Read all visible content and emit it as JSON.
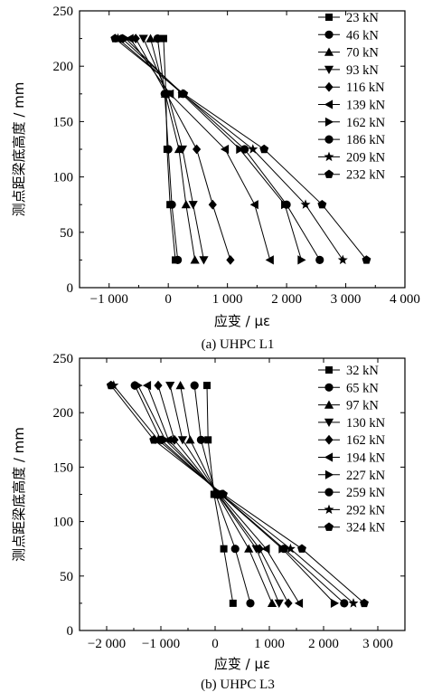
{
  "charts": [
    {
      "chart_data": {
        "type": "line",
        "caption": "(a) UHPC L1",
        "xlabel": "应变 / με",
        "ylabel": "测点距梁底高度 / mm",
        "xlim": [
          -1500,
          4000
        ],
        "ylim": [
          0,
          250
        ],
        "xticks": [
          -1000,
          0,
          1000,
          2000,
          3000,
          4000
        ],
        "xtick_labels": [
          "−1 000",
          "0",
          "1 000",
          "2 000",
          "3 000",
          "4 000"
        ],
        "yticks": [
          0,
          50,
          100,
          150,
          200,
          250
        ],
        "ytick_labels": [
          "0",
          "50",
          "100",
          "150",
          "200",
          "250"
        ],
        "heights": [
          25,
          75,
          125,
          175,
          225
        ],
        "legend_position": "top-right",
        "grid": false,
        "series": [
          {
            "name": "23 kN",
            "marker": "square",
            "strain": [
              120,
              30,
              -20,
              -40,
              -80
            ]
          },
          {
            "name": "46 kN",
            "marker": "circle",
            "strain": [
              160,
              60,
              0,
              -60,
              -180
            ]
          },
          {
            "name": "70 kN",
            "marker": "triangle-up",
            "strain": [
              450,
              300,
              180,
              -50,
              -300
            ]
          },
          {
            "name": "93 kN",
            "marker": "triangle-down",
            "strain": [
              600,
              420,
              240,
              -10,
              -420
            ]
          },
          {
            "name": "116 kN",
            "marker": "diamond",
            "strain": [
              1050,
              750,
              480,
              -30,
              -550
            ]
          },
          {
            "name": "139 kN",
            "marker": "triangle-left",
            "strain": [
              1720,
              1460,
              960,
              30,
              -650
            ]
          },
          {
            "name": "162 kN",
            "marker": "triangle-right",
            "strain": [
              2250,
              1970,
              1210,
              230,
              -720
            ]
          },
          {
            "name": "186 kN",
            "marker": "circle",
            "strain": [
              2560,
              2000,
              1290,
              250,
              -780
            ]
          },
          {
            "name": "209 kN",
            "marker": "star",
            "strain": [
              2950,
              2320,
              1430,
              240,
              -850
            ]
          },
          {
            "name": "232 kN",
            "marker": "pentagon",
            "strain": [
              3350,
              2600,
              1620,
              260,
              -900
            ]
          }
        ]
      }
    },
    {
      "chart_data": {
        "type": "line",
        "caption": "(b) UHPC L3",
        "xlabel": "应变 / με",
        "ylabel": "测点距梁底高度 / mm",
        "xlim": [
          -2500,
          3500
        ],
        "ylim": [
          0,
          250
        ],
        "xticks": [
          -2000,
          -1000,
          0,
          1000,
          2000,
          3000
        ],
        "xtick_labels": [
          "−2 000",
          "−1 000",
          "0",
          "1 000",
          "2 000",
          "3 000"
        ],
        "yticks": [
          0,
          50,
          100,
          150,
          200,
          250
        ],
        "ytick_labels": [
          "0",
          "50",
          "100",
          "150",
          "200",
          "250"
        ],
        "heights": [
          25,
          75,
          125,
          175,
          225
        ],
        "legend_position": "top-right",
        "grid": false,
        "series": [
          {
            "name": "32 kN",
            "marker": "square",
            "strain": [
              330,
              160,
              -20,
              -130,
              -150
            ]
          },
          {
            "name": "65 kN",
            "marker": "circle",
            "strain": [
              650,
              370,
              10,
              -260,
              -380
            ]
          },
          {
            "name": "97 kN",
            "marker": "triangle-up",
            "strain": [
              1050,
              620,
              40,
              -460,
              -640
            ]
          },
          {
            "name": "130 kN",
            "marker": "triangle-down",
            "strain": [
              1180,
              760,
              50,
              -600,
              -830
            ]
          },
          {
            "name": "162 kN",
            "marker": "diamond",
            "strain": [
              1350,
              820,
              60,
              -750,
              -1050
            ]
          },
          {
            "name": "194 kN",
            "marker": "triangle-left",
            "strain": [
              1550,
              940,
              80,
              -860,
              -1250
            ]
          },
          {
            "name": "227 kN",
            "marker": "triangle-right",
            "strain": [
              2200,
              1240,
              100,
              -920,
              -1420
            ]
          },
          {
            "name": "259 kN",
            "marker": "circle",
            "strain": [
              2380,
              1270,
              110,
              -1000,
              -1480
            ]
          },
          {
            "name": "292 kN",
            "marker": "star",
            "strain": [
              2550,
              1390,
              120,
              -1050,
              -1870
            ]
          },
          {
            "name": "324 kN",
            "marker": "pentagon",
            "strain": [
              2750,
              1600,
              150,
              -1130,
              -1920
            ]
          }
        ]
      }
    }
  ]
}
